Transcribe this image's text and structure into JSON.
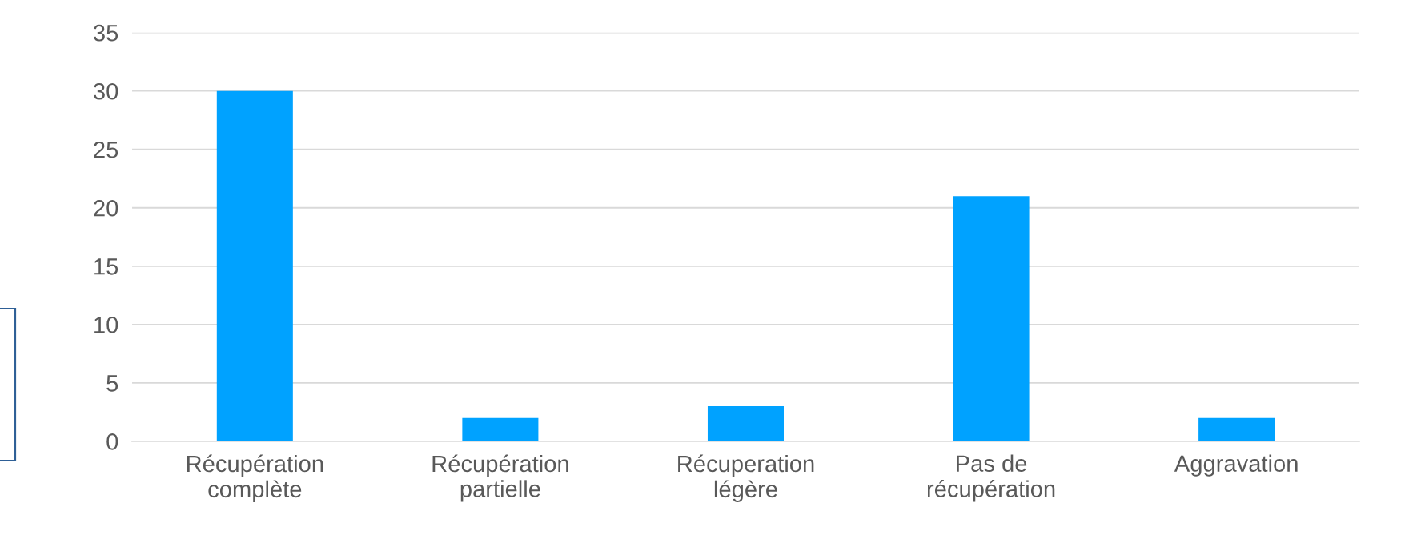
{
  "chart_data": {
    "type": "bar",
    "categories": [
      "Récupération\ncomplète",
      "Récupération\npartielle",
      "Récuperation\nlégère",
      "Pas de\nrécupération",
      "Aggravation"
    ],
    "values": [
      30,
      2,
      3,
      21,
      2
    ],
    "color": "#00a2ff",
    "ylim": [
      0,
      35
    ],
    "yticks": [
      0,
      5,
      10,
      15,
      20,
      25,
      30,
      35
    ],
    "grid": "y",
    "legend": false
  }
}
